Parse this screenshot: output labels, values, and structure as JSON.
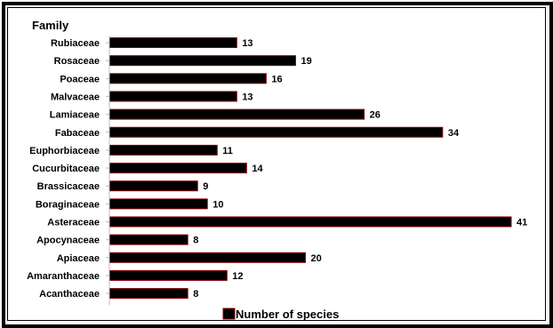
{
  "chart_data": {
    "type": "bar",
    "orientation": "horizontal",
    "title": "Family",
    "categories": [
      "Rubiaceae",
      "Rosaceae",
      "Poaceae",
      "Malvaceae",
      "Lamiaceae",
      "Fabaceae",
      "Euphorbiaceae",
      "Cucurbitaceae",
      "Brassicaceae",
      "Boraginaceae",
      "Asteraceae",
      "Apocynaceae",
      "Apiaceae",
      "Amaranthaceae",
      "Acanthaceae"
    ],
    "series": [
      {
        "name": "Number of species",
        "values": [
          13,
          19,
          16,
          13,
          26,
          34,
          11,
          14,
          9,
          10,
          41,
          8,
          20,
          12,
          8
        ]
      }
    ],
    "xlim": [
      0,
      41
    ],
    "grid": false,
    "legend_position": "bottom",
    "colors": {
      "bar_fill": "#000000",
      "bar_edge": "#8b0000",
      "frame": "#000000"
    }
  }
}
